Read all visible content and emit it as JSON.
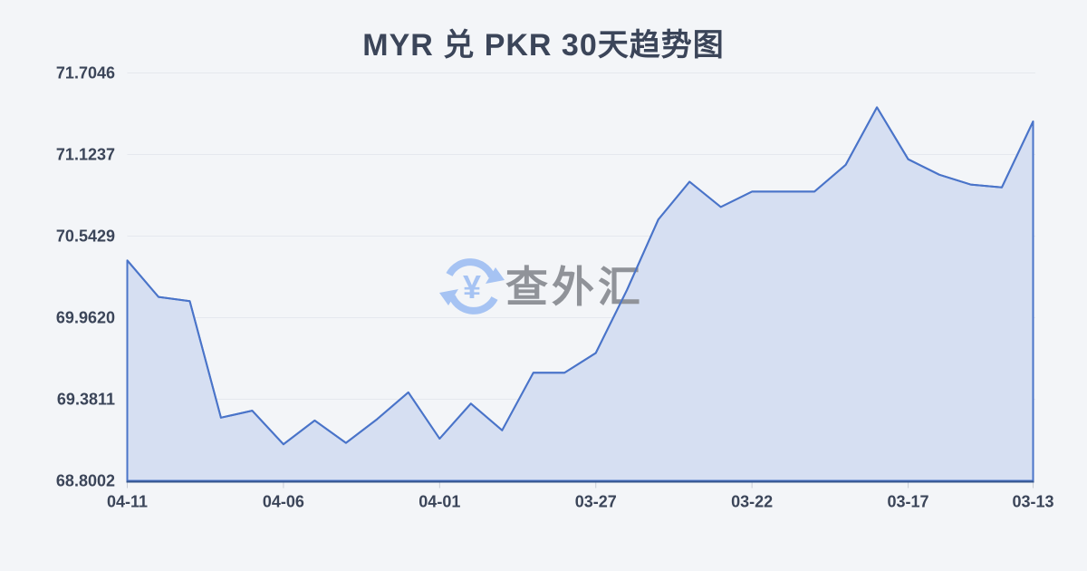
{
  "page": {
    "title": "MYR 兑 PKR 30天趋势图"
  },
  "watermark": {
    "text": "查外汇",
    "currency_symbol": "¥",
    "icon": "circular-exchange-arrows-icon"
  },
  "chart_data": {
    "type": "area",
    "title": "MYR 兑 PKR 30天趋势图",
    "x": [
      "04-11",
      "04-10",
      "04-09",
      "04-08",
      "04-07",
      "04-06",
      "04-05",
      "04-04",
      "04-03",
      "04-02",
      "04-01",
      "03-31",
      "03-30",
      "03-29",
      "03-28",
      "03-27",
      "03-26",
      "03-25",
      "03-24",
      "03-23",
      "03-22",
      "03-21",
      "03-20",
      "03-19",
      "03-18",
      "03-17",
      "03-16",
      "03-15",
      "03-14",
      "03-13"
    ],
    "values": [
      70.37,
      70.11,
      70.08,
      69.25,
      69.3,
      69.06,
      69.23,
      69.07,
      69.24,
      69.43,
      69.1,
      69.35,
      69.16,
      69.57,
      69.57,
      69.71,
      70.16,
      70.66,
      70.93,
      70.75,
      70.86,
      70.86,
      70.86,
      71.05,
      71.46,
      71.09,
      70.98,
      70.91,
      70.89,
      71.36
    ],
    "x_axis_label_indices": [
      0,
      5,
      10,
      15,
      20,
      25,
      29
    ],
    "x_axis_labels_shown": [
      "04-11",
      "04-06",
      "04-01",
      "03-27",
      "03-22",
      "03-17",
      "03-13"
    ],
    "y_ticks": [
      71.7046,
      71.1237,
      70.5429,
      69.962,
      69.3811,
      68.8002
    ],
    "y_tick_labels": [
      "71.7046",
      "71.1237",
      "70.5429",
      "69.9620",
      "69.3811",
      "68.8002"
    ],
    "ylim": [
      68.8002,
      71.7046
    ],
    "grid": "horizontal",
    "legend": "none",
    "colors": {
      "background": "#f3f5f8",
      "line": "#4a74c9",
      "fill": "#d6dff2",
      "axis": "#35568e",
      "grid": "#e5e8ee",
      "tick": "#c8cdd6",
      "label": "#3b4559",
      "title": "#3b4559",
      "watermark_icon": "#a6c3f3",
      "watermark_text": "#909399"
    }
  }
}
